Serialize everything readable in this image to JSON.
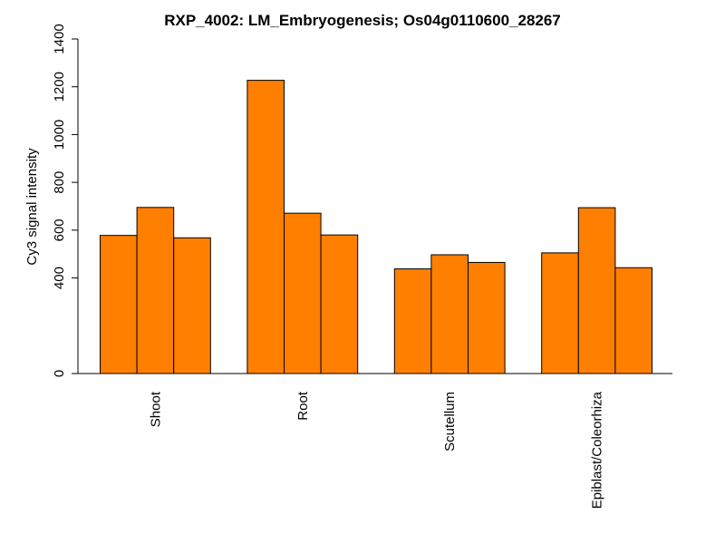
{
  "chart_data": {
    "type": "bar",
    "title": "RXP_4002: LM_Embryogenesis; Os04g0110600_28267",
    "xlabel": "",
    "ylabel": "Cy3 signal intensity",
    "ylim": [
      0,
      1400
    ],
    "y_ticks": [
      0,
      400,
      600,
      800,
      1000,
      1200,
      1400
    ],
    "categories": [
      "Shoot",
      "Root",
      "Scutellum",
      "Epiblast/Coleorhiza"
    ],
    "bars_per_category": 3,
    "values": [
      [
        578,
        695,
        568
      ],
      [
        1227,
        671,
        580
      ],
      [
        438,
        497,
        465
      ],
      [
        505,
        694,
        443
      ]
    ],
    "bar_color": "#FF7F00",
    "grid": false,
    "legend": "none"
  }
}
